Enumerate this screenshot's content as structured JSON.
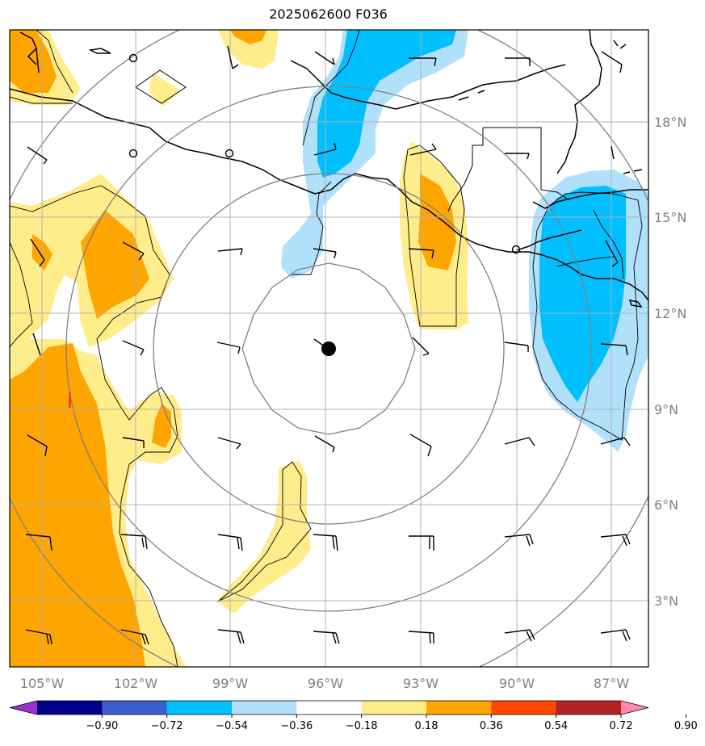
{
  "title": "2025062600 F036",
  "map": {
    "lon_labels": [
      "105°W",
      "102°W",
      "99°W",
      "96°W",
      "93°W",
      "90°W",
      "87°W"
    ],
    "lat_labels": [
      "18°N",
      "15°N",
      "12°N",
      "9°N",
      "6°N",
      "3°N"
    ],
    "center_marker": "storm-center"
  },
  "colorbar": {
    "ticks": [
      "−0.90",
      "−0.72",
      "−0.54",
      "−0.36",
      "−0.18",
      "0.18",
      "0.36",
      "0.54",
      "0.72",
      "0.90"
    ],
    "colors": [
      "#9932cc",
      "#00008b",
      "#3a5fcd",
      "#00bfff",
      "#b0e0fa",
      "#ffffff",
      "#ffec8b",
      "#ffa500",
      "#ff4500",
      "#b22222",
      "#ff88aa"
    ]
  }
}
